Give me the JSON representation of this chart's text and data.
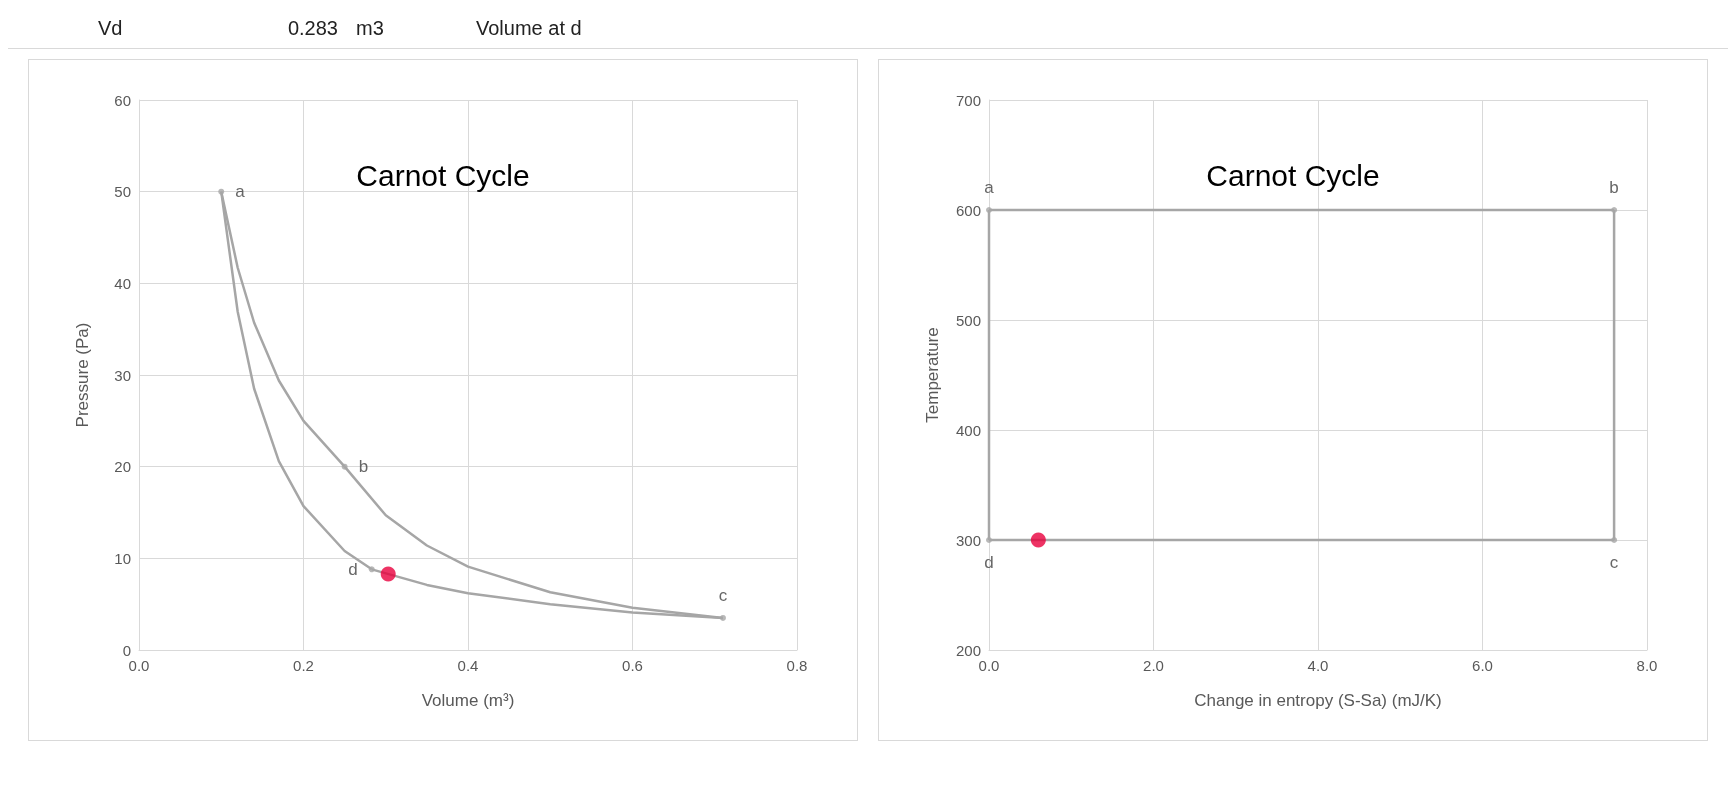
{
  "chart_data": [
    {
      "type": "line",
      "title": "Carnot Cycle",
      "xlabel": "Volume (m³)",
      "ylabel": "Pressure (Pa)",
      "xlim": [
        0,
        0.8
      ],
      "xticks": [
        {
          "value": 0,
          "label": "0.0"
        },
        {
          "value": 0.2,
          "label": "0.2"
        },
        {
          "value": 0.4,
          "label": "0.4"
        },
        {
          "value": 0.6,
          "label": "0.6"
        },
        {
          "value": 0.8,
          "label": "0.8"
        }
      ],
      "ylim": [
        0,
        60
      ],
      "yticks": [
        0,
        10,
        20,
        30,
        40,
        50,
        60
      ],
      "grid": true,
      "annotations": [
        "Vd",
        "0.283",
        "m3",
        "Volume at d",
        {
          "text": "a",
          "x": 0.1,
          "y": 50
        },
        {
          "text": "b",
          "x": 0.25,
          "y": 20
        },
        {
          "text": "c",
          "x": 0.71,
          "y": 3.5
        },
        {
          "text": "d",
          "x": 0.283,
          "y": 8.8
        }
      ],
      "series": [
        {
          "color": "#a6a6a6",
          "marker": "none",
          "x": [
            0.1,
            0.12,
            0.14,
            0.17,
            0.2,
            0.25
          ],
          "values": [
            50,
            41.7,
            35.7,
            29.4,
            25,
            20
          ]
        },
        {
          "color": "#a6a6a6",
          "marker": "none",
          "x": [
            0.25,
            0.3,
            0.35,
            0.4,
            0.5,
            0.6,
            0.71
          ],
          "values": [
            20,
            14.7,
            11.4,
            9.1,
            6.3,
            4.6,
            3.5
          ]
        },
        {
          "color": "#a6a6a6",
          "marker": "none",
          "x": [
            0.71,
            0.6,
            0.5,
            0.4,
            0.35,
            0.283
          ],
          "values": [
            3.5,
            4.1,
            5,
            6.2,
            7.1,
            8.8
          ]
        },
        {
          "color": "#a6a6a6",
          "marker": "none",
          "x": [
            0.283,
            0.25,
            0.2,
            0.17,
            0.14,
            0.12,
            0.1
          ],
          "values": [
            8.8,
            10.8,
            15.7,
            20.6,
            28.5,
            36.9,
            50
          ]
        },
        {
          "type": "scatter",
          "color": "#a6a6a6",
          "marker": "circle",
          "x": [
            0.1,
            0.25,
            0.71,
            0.283
          ],
          "values": [
            50,
            20,
            3.5,
            8.8
          ]
        },
        {
          "type": "scatter",
          "color": "#e8003d",
          "marker": "circle",
          "x": [
            0.303
          ],
          "values": [
            8.3
          ]
        }
      ]
    },
    {
      "type": "line",
      "title": "Carnot Cycle",
      "xlabel": "Change in entropy (S-Sa) (mJ/K)",
      "ylabel": "Temperature",
      "xlim": [
        0,
        8
      ],
      "xticks": [
        {
          "value": 0,
          "label": "0.0"
        },
        {
          "value": 2,
          "label": "2.0"
        },
        {
          "value": 4,
          "label": "4.0"
        },
        {
          "value": 6,
          "label": "6.0"
        },
        {
          "value": 8,
          "label": "8.0"
        }
      ],
      "ylim": [
        200,
        700
      ],
      "yticks": [
        200,
        300,
        400,
        500,
        600,
        700
      ],
      "grid": true,
      "annotations": [
        {
          "text": "a",
          "x": 0,
          "y": 600
        },
        {
          "text": "b",
          "x": 7.6,
          "y": 600
        },
        {
          "text": "c",
          "x": 7.6,
          "y": 300
        },
        {
          "text": "d",
          "x": 0,
          "y": 300
        }
      ],
      "series": [
        {
          "color": "#a6a6a6",
          "marker": "none",
          "x": [
            0,
            7.6
          ],
          "values": [
            600,
            600
          ]
        },
        {
          "color": "#a6a6a6",
          "marker": "none",
          "x": [
            7.6,
            7.6
          ],
          "values": [
            600,
            300
          ]
        },
        {
          "color": "#a6a6a6",
          "marker": "none",
          "x": [
            7.6,
            0
          ],
          "values": [
            300,
            300
          ]
        },
        {
          "color": "#a6a6a6",
          "marker": "none",
          "x": [
            0,
            0
          ],
          "values": [
            300,
            600
          ]
        },
        {
          "type": "scatter",
          "color": "#a6a6a6",
          "marker": "circle",
          "x": [
            0,
            7.6,
            7.6,
            0
          ],
          "values": [
            600,
            600,
            300,
            300
          ]
        },
        {
          "type": "scatter",
          "color": "#e8003d",
          "marker": "circle",
          "x": [
            0.6
          ],
          "values": [
            300
          ]
        }
      ]
    }
  ]
}
